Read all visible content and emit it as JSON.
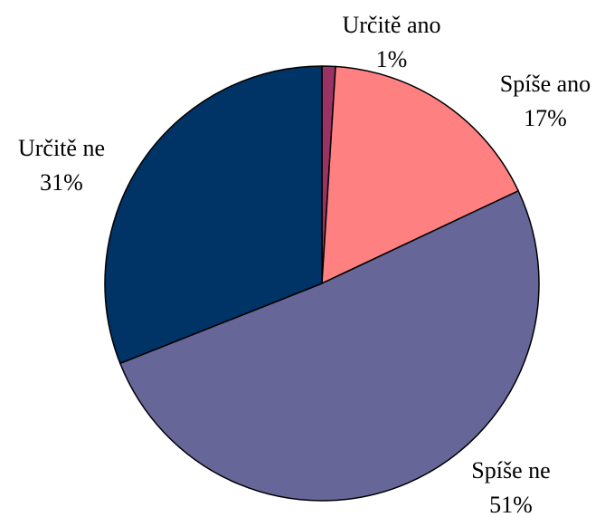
{
  "chart_data": {
    "type": "pie",
    "categories": [
      "Určitě ano",
      "Spíše ano",
      "Spíše ne",
      "Určitě ne"
    ],
    "values": [
      1,
      17,
      51,
      31
    ],
    "value_labels": [
      "1%",
      "17%",
      "51%",
      "31%"
    ],
    "colors": [
      "#993366",
      "#ff8080",
      "#666699",
      "#003366"
    ]
  }
}
